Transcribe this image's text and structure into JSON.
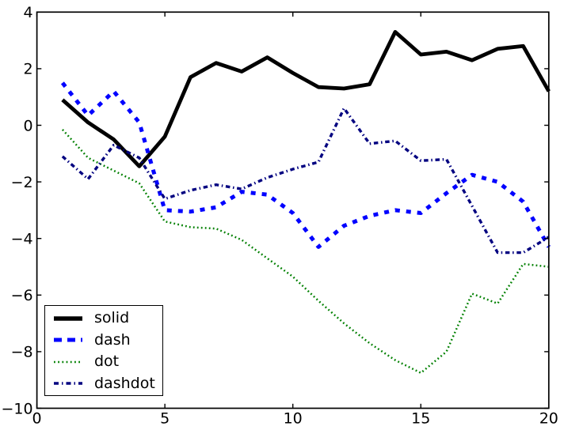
{
  "chart_data": {
    "type": "line",
    "title": "",
    "xlabel": "",
    "ylabel": "",
    "xlim": [
      0,
      20
    ],
    "ylim": [
      -10,
      4
    ],
    "grid": false,
    "background": "#ffffff",
    "axes_color": "#000000",
    "legend_position": "lower-left",
    "xticks": {
      "values": [
        0,
        5,
        10,
        15,
        20
      ],
      "labels": [
        "0",
        "5",
        "10",
        "15",
        "20"
      ]
    },
    "yticks": {
      "values": [
        4,
        2,
        0,
        -2,
        -4,
        -6,
        -8,
        -10
      ],
      "labels": [
        "4",
        "2",
        "0",
        "−2",
        "−4",
        "−6",
        "−8",
        "−10"
      ]
    },
    "x": [
      1,
      2,
      3,
      4,
      5,
      6,
      7,
      8,
      9,
      10,
      11,
      12,
      13,
      14,
      15,
      16,
      17,
      18,
      19,
      20
    ],
    "series": [
      {
        "name": "solid",
        "color": "#000000",
        "linestyle": "solid",
        "linewidth": 4.8,
        "dasharray": "",
        "legend_dasharray": "",
        "values": [
          0.9,
          0.1,
          -0.5,
          -1.45,
          -0.4,
          1.7,
          2.2,
          1.9,
          2.4,
          1.85,
          1.35,
          1.3,
          1.45,
          3.3,
          2.5,
          2.6,
          2.3,
          2.7,
          2.8,
          1.2
        ]
      },
      {
        "name": "dash",
        "color": "#0000ff",
        "linestyle": "dashed",
        "linewidth": 5,
        "dasharray": "6 8",
        "legend_dasharray": "10 7",
        "values": [
          1.5,
          0.35,
          1.2,
          0.1,
          -3.0,
          -3.05,
          -2.9,
          -2.35,
          -2.45,
          -3.1,
          -4.3,
          -3.55,
          -3.2,
          -3.0,
          -3.1,
          -2.4,
          -1.75,
          -2.0,
          -2.7,
          -4.3
        ]
      },
      {
        "name": "dot",
        "color": "#008000",
        "linestyle": "dotted",
        "linewidth": 2.5,
        "dasharray": "1.8 3.2",
        "legend_dasharray": "1.8 3.4",
        "values": [
          -0.15,
          -1.15,
          -1.6,
          -2.05,
          -3.4,
          -3.6,
          -3.65,
          -4.05,
          -4.7,
          -5.35,
          -6.2,
          -7.0,
          -7.7,
          -8.3,
          -8.75,
          -8.0,
          -5.95,
          -6.3,
          -4.9,
          -5.0
        ]
      },
      {
        "name": "dashdot",
        "color": "#000080",
        "linestyle": "dashdot",
        "linewidth": 3.4,
        "dasharray": "5.5 3.7 1.5 3.7",
        "legend_dasharray": "6 4 1.5 4",
        "values": [
          -1.1,
          -1.9,
          -0.7,
          -1.15,
          -2.6,
          -2.3,
          -2.1,
          -2.25,
          -1.85,
          -1.55,
          -1.3,
          0.6,
          -0.65,
          -0.55,
          -1.25,
          -1.2,
          -2.85,
          -4.5,
          -4.5,
          -3.95
        ]
      }
    ]
  },
  "legend": {
    "entries": [
      {
        "label": "solid"
      },
      {
        "label": "dash"
      },
      {
        "label": "dot"
      },
      {
        "label": "dashdot"
      }
    ]
  }
}
